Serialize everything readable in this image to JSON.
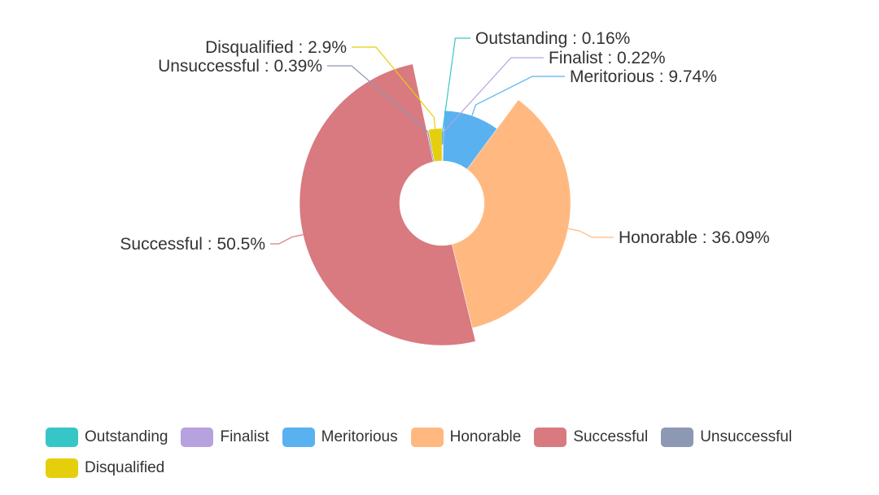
{
  "chart_data": {
    "type": "pie",
    "variant": "rose-donut",
    "title": "",
    "legend_position": "bottom-left",
    "slices": [
      {
        "name": "Outstanding",
        "label": "Outstanding : 0.16%",
        "value": 0.16,
        "color": "#37c6c8"
      },
      {
        "name": "Finalist",
        "label": "Finalist : 0.22%",
        "value": 0.22,
        "color": "#b6a2de"
      },
      {
        "name": "Meritorious",
        "label": "Meritorious  : 9.74%",
        "value": 9.74,
        "color": "#5ab1ef"
      },
      {
        "name": "Honorable",
        "label": "Honorable  : 36.09%",
        "value": 36.09,
        "color": "#ffb980"
      },
      {
        "name": "Successful",
        "label": "Successful : 50.5%",
        "value": 50.5,
        "color": "#d87a80"
      },
      {
        "name": "Unsuccessful",
        "label": "Unsuccessful : 0.39%",
        "value": 0.39,
        "color": "#8d98b3"
      },
      {
        "name": "Disqualified",
        "label": "Disqualified : 2.9%",
        "value": 2.9,
        "color": "#e5cf0d"
      }
    ]
  }
}
